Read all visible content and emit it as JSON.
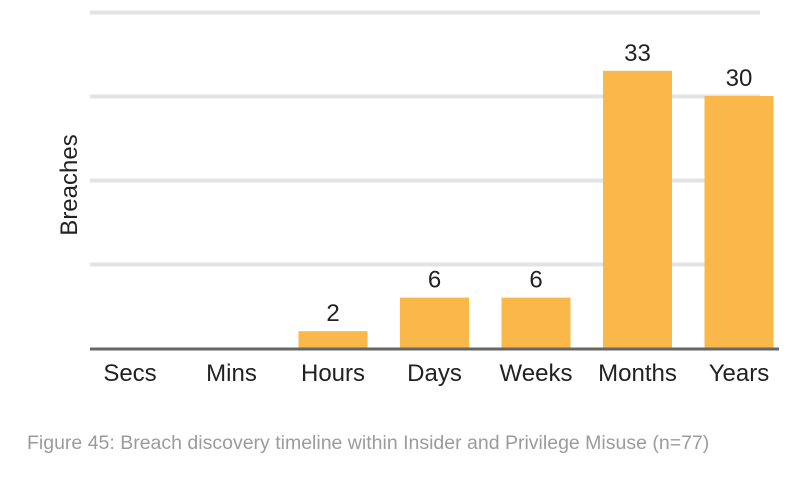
{
  "caption": "Figure 45: Breach discovery timeline within Insider and Privilege Misuse (n=77)",
  "colors": {
    "bar": "#fbb84a",
    "gridline": "#e3e3e3",
    "baseline": "#666666",
    "label_text": "#222222",
    "caption_text": "#9b9b9b"
  },
  "chart_data": {
    "type": "bar",
    "title": "",
    "xlabel": "",
    "ylabel": "Breaches",
    "categories": [
      "Secs",
      "Mins",
      "Hours",
      "Days",
      "Weeks",
      "Months",
      "Years"
    ],
    "values": [
      0,
      0,
      2,
      6,
      6,
      33,
      30
    ],
    "data_labels": [
      "",
      "",
      "2",
      "6",
      "6",
      "33",
      "30"
    ],
    "ylim": [
      0,
      40
    ],
    "gridline_values": [
      10,
      20,
      30,
      40
    ],
    "grid": true,
    "legend": "none"
  }
}
